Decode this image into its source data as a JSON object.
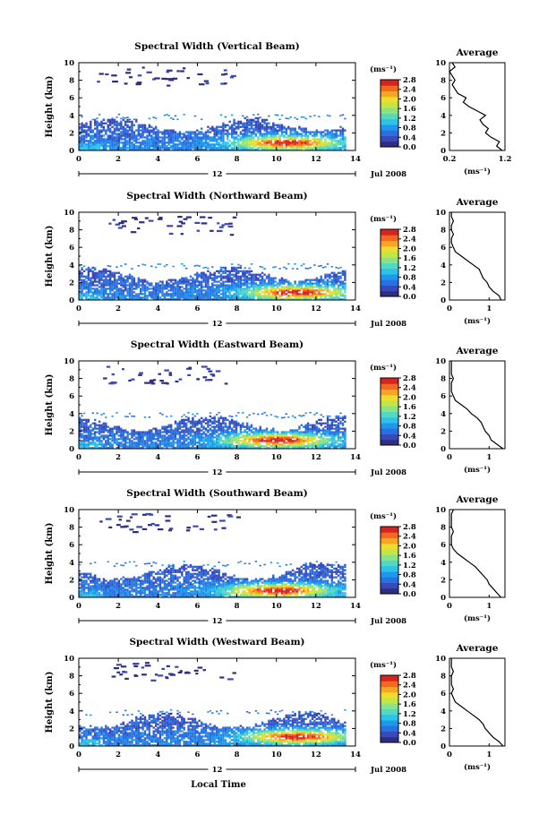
{
  "figure": {
    "x_axis_label": "Local Time",
    "date_label": "Jul 2008",
    "day_marker": "12",
    "colorbar_unit": "(ms⁻¹)",
    "average_title": "Average",
    "average_xlabel": "(ms⁻¹)"
  },
  "colors": {
    "scale": [
      "#2e2e82",
      "#3a48b8",
      "#2c6fe0",
      "#1e98ee",
      "#2ec2e6",
      "#53d9bf",
      "#8ce386",
      "#c2e646",
      "#efdc2e",
      "#f7a624",
      "#f26a1d",
      "#d9231e"
    ]
  },
  "chart_data": [
    {
      "type": "heatmap",
      "title": "Spectral Width (Vertical Beam)",
      "ylabel": "Height (km)",
      "xlim": [
        0,
        14
      ],
      "ylim": [
        0,
        10
      ],
      "x_ticks": [
        "0",
        "2",
        "4",
        "6",
        "8",
        "10",
        "12",
        "14"
      ],
      "y_ticks": [
        "0",
        "2",
        "4",
        "6",
        "8",
        "10"
      ],
      "colorbar": {
        "range": [
          0,
          2.8
        ],
        "ticks": [
          "0.0",
          "0.4",
          "0.8",
          "1.2",
          "1.6",
          "2.0",
          "2.4",
          "2.8"
        ]
      },
      "hot_spot": {
        "t": 10.5,
        "h": 0.8
      },
      "upper_gaps": [
        0.0,
        0.3,
        0.5,
        0.1,
        0.6,
        0.2
      ],
      "average": {
        "xlim": [
          0.2,
          1.2
        ],
        "x_ticks": [
          "0.2",
          "1.2"
        ],
        "ylim": [
          0,
          10
        ],
        "height": [
          0,
          0.5,
          1,
          1.5,
          2,
          2.5,
          3,
          3.5,
          4,
          4.5,
          5,
          5.5,
          6,
          6.5,
          7,
          7.5,
          8,
          8.5,
          9,
          9.5,
          10
        ],
        "width": [
          1.15,
          1.05,
          1.1,
          0.95,
          0.85,
          0.9,
          0.8,
          0.75,
          0.85,
          0.7,
          0.55,
          0.45,
          0.5,
          0.35,
          0.3,
          0.25,
          0.3,
          0.25,
          0.2,
          0.3,
          0.25
        ]
      }
    },
    {
      "type": "heatmap",
      "title": "Spectral Width (Northward Beam)",
      "ylabel": "Height (km)",
      "xlim": [
        0,
        14
      ],
      "ylim": [
        0,
        10
      ],
      "x_ticks": [
        "0",
        "2",
        "4",
        "6",
        "8",
        "10",
        "12",
        "14"
      ],
      "y_ticks": [
        "0",
        "2",
        "4",
        "6",
        "8",
        "10"
      ],
      "colorbar": {
        "range": [
          0,
          2.8
        ],
        "ticks": [
          "0.0",
          "0.4",
          "0.8",
          "1.2",
          "1.6",
          "2.0",
          "2.4",
          "2.8"
        ]
      },
      "hot_spot": {
        "t": 11.0,
        "h": 0.8
      },
      "upper_gaps": [
        0.4,
        0.1,
        0.7,
        0.3,
        0.5,
        0.2
      ],
      "average": {
        "xlim": [
          0,
          1.4
        ],
        "x_ticks": [
          "0",
          "1"
        ],
        "ylim": [
          0,
          10
        ],
        "height": [
          0,
          0.5,
          1,
          1.5,
          2,
          2.5,
          3,
          3.5,
          4,
          4.5,
          5,
          5.5,
          6,
          6.5,
          7,
          7.5,
          8,
          8.5,
          9,
          9.5,
          10
        ],
        "width": [
          1.3,
          1.25,
          1.1,
          1.0,
          0.95,
          0.85,
          0.8,
          0.75,
          0.6,
          0.45,
          0.3,
          0.15,
          0.1,
          0.05,
          0.05,
          0.1,
          0.05,
          0.05,
          0.1,
          0.05,
          0.05
        ]
      }
    },
    {
      "type": "heatmap",
      "title": "Spectral Width (Eastward Beam)",
      "ylabel": "Height (km)",
      "xlim": [
        0,
        14
      ],
      "ylim": [
        0,
        10
      ],
      "x_ticks": [
        "0",
        "2",
        "4",
        "6",
        "8",
        "10",
        "12",
        "14"
      ],
      "y_ticks": [
        "0",
        "2",
        "4",
        "6",
        "8",
        "10"
      ],
      "colorbar": {
        "range": [
          0,
          2.8
        ],
        "ticks": [
          "0.0",
          "0.4",
          "0.8",
          "1.2",
          "1.6",
          "2.0",
          "2.4",
          "2.8"
        ]
      },
      "hot_spot": {
        "t": 10.0,
        "h": 0.9
      },
      "upper_gaps": [
        0.2,
        0.6,
        0.0,
        0.4,
        0.8,
        0.3
      ],
      "average": {
        "xlim": [
          0,
          1.4
        ],
        "x_ticks": [
          "0",
          "1"
        ],
        "ylim": [
          0,
          10
        ],
        "height": [
          0,
          0.5,
          1,
          1.5,
          2,
          2.5,
          3,
          3.5,
          4,
          4.5,
          5,
          5.5,
          6,
          6.5,
          7,
          7.5,
          8,
          8.5,
          9,
          9.5,
          10
        ],
        "width": [
          1.35,
          1.2,
          1.05,
          1.0,
          0.9,
          0.85,
          0.8,
          0.7,
          0.55,
          0.45,
          0.3,
          0.15,
          0.1,
          0.05,
          0.05,
          0.05,
          0.1,
          0.05,
          0.05,
          0.05,
          0.05
        ]
      }
    },
    {
      "type": "heatmap",
      "title": "Spectral Width (Southward Beam)",
      "ylabel": "Height (km)",
      "xlim": [
        0,
        14
      ],
      "ylim": [
        0,
        10
      ],
      "x_ticks": [
        "0",
        "2",
        "4",
        "6",
        "8",
        "10",
        "12",
        "14"
      ],
      "y_ticks": [
        "0",
        "2",
        "4",
        "6",
        "8",
        "10"
      ],
      "colorbar": {
        "range": [
          0,
          2.8
        ],
        "ticks": [
          "0.0",
          "0.4",
          "0.8",
          "1.2",
          "1.6",
          "2.0",
          "2.4",
          "2.8"
        ]
      },
      "hot_spot": {
        "t": 10.0,
        "h": 0.7
      },
      "upper_gaps": [
        0.5,
        0.2,
        0.6,
        0.1,
        0.4,
        0.7
      ],
      "average": {
        "xlim": [
          0,
          1.4
        ],
        "x_ticks": [
          "0",
          "1"
        ],
        "ylim": [
          0,
          10
        ],
        "height": [
          0,
          0.5,
          1,
          1.5,
          2,
          2.5,
          3,
          3.5,
          4,
          4.5,
          5,
          5.5,
          6,
          6.5,
          7,
          7.5,
          8,
          8.5,
          9,
          9.5,
          10
        ],
        "width": [
          1.3,
          1.2,
          1.1,
          1.0,
          0.95,
          0.85,
          0.75,
          0.65,
          0.5,
          0.35,
          0.2,
          0.1,
          0.05,
          0.05,
          0.05,
          0.1,
          0.05,
          0.05,
          0.05,
          0.05,
          0.1
        ]
      }
    },
    {
      "type": "heatmap",
      "title": "Spectral Width (Westward Beam)",
      "ylabel": "Height (km)",
      "xlim": [
        0,
        14
      ],
      "ylim": [
        0,
        10
      ],
      "x_ticks": [
        "0",
        "2",
        "4",
        "6",
        "8",
        "10",
        "12",
        "14"
      ],
      "y_ticks": [
        "0",
        "2",
        "4",
        "6",
        "8",
        "10"
      ],
      "colorbar": {
        "range": [
          0,
          2.8
        ],
        "ticks": [
          "0.0",
          "0.4",
          "0.8",
          "1.2",
          "1.6",
          "2.0",
          "2.4",
          "2.8"
        ]
      },
      "hot_spot": {
        "t": 11.0,
        "h": 1.0
      },
      "upper_gaps": [
        0.3,
        0.0,
        0.5,
        0.2,
        0.7,
        0.4
      ],
      "average": {
        "xlim": [
          0,
          1.4
        ],
        "x_ticks": [
          "0",
          "1"
        ],
        "ylim": [
          0,
          10
        ],
        "height": [
          0,
          0.5,
          1,
          1.5,
          2,
          2.5,
          3,
          3.5,
          4,
          4.5,
          5,
          5.5,
          6,
          6.5,
          7,
          7.5,
          8,
          8.5,
          9,
          9.5,
          10
        ],
        "width": [
          1.35,
          1.25,
          1.1,
          1.0,
          0.9,
          0.85,
          0.75,
          0.6,
          0.45,
          0.3,
          0.15,
          0.1,
          0.05,
          0.1,
          0.05,
          0.05,
          0.05,
          0.1,
          0.05,
          0.05,
          0.05
        ]
      }
    }
  ]
}
